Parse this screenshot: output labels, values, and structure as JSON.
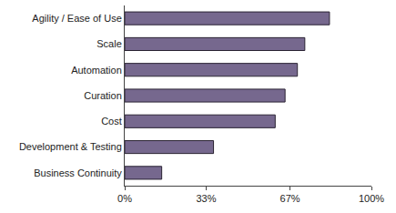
{
  "chart_data": {
    "type": "bar",
    "orientation": "horizontal",
    "categories": [
      "Agility / Ease of Use",
      "Scale",
      "Automation",
      "Curation",
      "Cost",
      "Development & Testing",
      "Business Continuity"
    ],
    "values": [
      83,
      73,
      70,
      65,
      61,
      36,
      15
    ],
    "color": "#76688e",
    "xlim": [
      0,
      100
    ],
    "xticks": [
      {
        "value": 0,
        "label": "0%"
      },
      {
        "value": 33,
        "label": "33%"
      },
      {
        "value": 67,
        "label": "67%"
      },
      {
        "value": 100,
        "label": "100%"
      }
    ],
    "grid": false
  }
}
